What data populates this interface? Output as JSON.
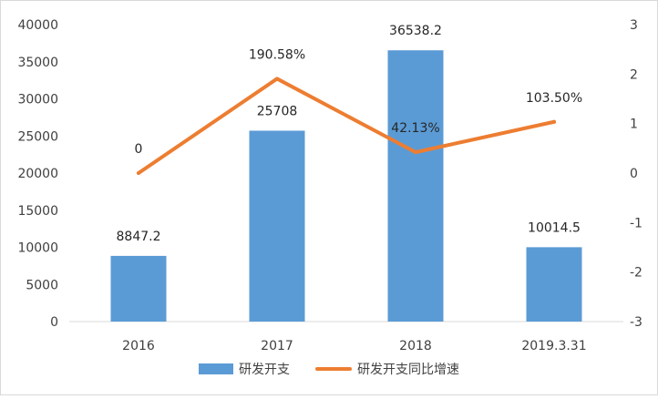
{
  "chart_data": {
    "type": "bar",
    "categories": [
      "2016",
      "2017",
      "2018",
      "2019.3.31"
    ],
    "series": [
      {
        "name": "研发开支",
        "type": "bar",
        "axis": "left",
        "values": [
          8847.2,
          25708,
          36538.2,
          10014.5
        ],
        "labels": [
          "8847.2",
          "25708",
          "36538.2",
          "10014.5"
        ],
        "color": "#5b9bd5"
      },
      {
        "name": "研发开支同比增速",
        "type": "line",
        "axis": "right",
        "values": [
          0,
          1.9058,
          0.4213,
          1.035
        ],
        "labels": [
          "0",
          "190.58%",
          "42.13%",
          "103.50%"
        ],
        "color": "#ed7d31"
      }
    ],
    "ylim_left": [
      0,
      40000
    ],
    "yticks_left": [
      "0",
      "5000",
      "10000",
      "15000",
      "20000",
      "25000",
      "30000",
      "35000",
      "40000"
    ],
    "ylim_right": [
      -3,
      3
    ],
    "yticks_right": [
      "-3",
      "-2",
      "-1",
      "0",
      "1",
      "2",
      "3"
    ],
    "grid": false,
    "legend_position": "bottom"
  }
}
